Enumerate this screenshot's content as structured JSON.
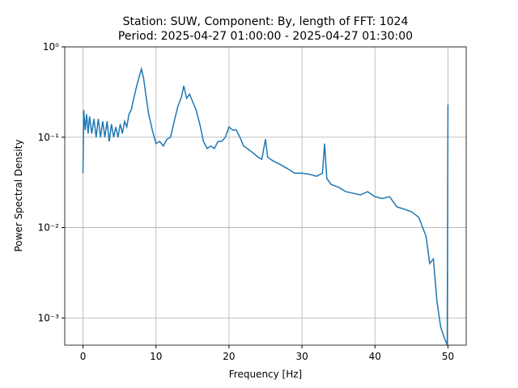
{
  "chart_data": {
    "type": "line",
    "title": "Station: SUW, Component: By, length of FFT: 1024",
    "subtitle": "Period: 2025-04-27 01:00:00 - 2025-04-27 01:30:00",
    "x_label": "Frequency [Hz]",
    "y_label": "Power Spectral Density",
    "xlim": [
      -2.5,
      52.5
    ],
    "xticks": [
      0,
      10,
      20,
      30,
      40,
      50
    ],
    "ylim": [
      0.0005,
      1
    ],
    "y_log": true,
    "yticks": [
      {
        "value": 0.001,
        "label": "10⁻³"
      },
      {
        "value": 0.01,
        "label": "10⁻²"
      },
      {
        "value": 0.1,
        "label": "10⁻¹"
      },
      {
        "value": 1,
        "label": "10⁰"
      }
    ],
    "grid": true,
    "series": [
      {
        "color": "#1f77b4",
        "x": [
          0,
          0.1,
          0.3,
          0.5,
          0.7,
          0.9,
          1.2,
          1.5,
          1.8,
          2.1,
          2.4,
          2.7,
          3.0,
          3.3,
          3.6,
          3.9,
          4.2,
          4.5,
          4.8,
          5.1,
          5.4,
          5.7,
          6.0,
          6.3,
          6.6,
          7.0,
          7.4,
          7.8,
          8.0,
          8.3,
          8.6,
          9.0,
          9.5,
          10.0,
          10.5,
          11.0,
          11.5,
          12.0,
          12.5,
          13.0,
          13.5,
          13.8,
          14.2,
          14.6,
          15.0,
          15.5,
          16.0,
          16.5,
          17.0,
          17.5,
          18.0,
          18.5,
          19.0,
          19.5,
          20.0,
          20.5,
          21.0,
          21.5,
          22.0,
          22.5,
          23.0,
          23.5,
          24.0,
          24.5,
          25.0,
          25.3,
          26.0,
          27.0,
          28.0,
          29.0,
          30.0,
          31.0,
          32.0,
          32.8,
          33.1,
          33.4,
          34.0,
          35.0,
          36.0,
          37.0,
          38.0,
          39.0,
          40.0,
          41.0,
          42.0,
          43.0,
          44.0,
          45.0,
          46.0,
          47.0,
          47.5,
          48.0,
          48.5,
          49.0,
          49.5,
          49.9,
          50.0
        ],
        "values": [
          0.04,
          0.2,
          0.12,
          0.18,
          0.11,
          0.17,
          0.11,
          0.16,
          0.1,
          0.16,
          0.1,
          0.15,
          0.1,
          0.15,
          0.09,
          0.14,
          0.1,
          0.13,
          0.1,
          0.14,
          0.11,
          0.15,
          0.13,
          0.18,
          0.2,
          0.28,
          0.38,
          0.5,
          0.57,
          0.45,
          0.3,
          0.18,
          0.12,
          0.085,
          0.09,
          0.08,
          0.095,
          0.1,
          0.15,
          0.22,
          0.28,
          0.37,
          0.27,
          0.3,
          0.25,
          0.2,
          0.14,
          0.09,
          0.075,
          0.08,
          0.075,
          0.09,
          0.09,
          0.1,
          0.13,
          0.12,
          0.12,
          0.1,
          0.08,
          0.075,
          0.07,
          0.065,
          0.06,
          0.057,
          0.095,
          0.06,
          0.055,
          0.05,
          0.045,
          0.04,
          0.04,
          0.039,
          0.037,
          0.04,
          0.085,
          0.035,
          0.03,
          0.028,
          0.025,
          0.024,
          0.023,
          0.025,
          0.022,
          0.021,
          0.022,
          0.017,
          0.016,
          0.015,
          0.013,
          0.008,
          0.004,
          0.0045,
          0.0015,
          0.0008,
          0.0006,
          0.0005,
          0.23
        ]
      }
    ]
  }
}
